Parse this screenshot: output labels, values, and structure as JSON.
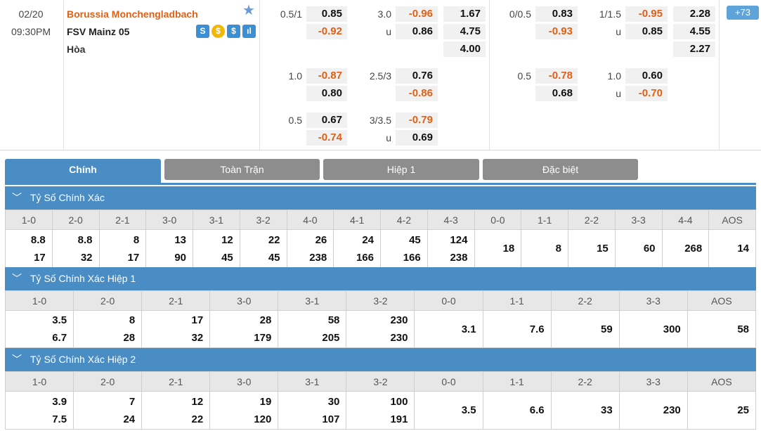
{
  "match": {
    "date": "02/20",
    "time": "09:30PM",
    "home": "Borussia Monchengladbach",
    "away": "FSV Mainz 05",
    "draw": "Hòa",
    "more_count": "+73",
    "badges": [
      "S",
      "$",
      "$",
      "ıl"
    ],
    "ft": {
      "hdp": [
        {
          "line": "0.5/1",
          "home": "0.85",
          "away": "-0.92"
        },
        {
          "line": "1.0",
          "home": "-0.87",
          "away": "0.80"
        },
        {
          "line": "0.5",
          "home": "0.67",
          "away": "-0.74"
        }
      ],
      "ou": [
        {
          "line": "3.0",
          "over": "-0.96",
          "under_lbl": "u",
          "under": "0.86"
        },
        {
          "line": "2.5/3",
          "over": "0.76",
          "under_lbl": "",
          "under": "-0.86"
        },
        {
          "line": "3/3.5",
          "over": "-0.79",
          "under_lbl": "u",
          "under": "0.69"
        }
      ],
      "x12": [
        "1.67",
        "4.75",
        "4.00"
      ]
    },
    "h1": {
      "hdp": [
        {
          "line": "0/0.5",
          "home": "0.83",
          "away": "-0.93"
        },
        {
          "line": "0.5",
          "home": "-0.78",
          "away": "0.68"
        }
      ],
      "ou": [
        {
          "line": "1/1.5",
          "over": "-0.95",
          "under_lbl": "u",
          "under": "0.85"
        },
        {
          "line": "1.0",
          "over": "0.60",
          "under_lbl": "u",
          "under": "-0.70"
        }
      ],
      "x12": [
        "2.28",
        "4.55",
        "2.27"
      ]
    }
  },
  "tabs": [
    "Chính",
    "Toàn Trận",
    "Hiệp 1",
    "Đặc biệt"
  ],
  "sections": [
    {
      "title": "Tỷ Số Chính Xác",
      "headers": [
        "1-0",
        "2-0",
        "2-1",
        "3-0",
        "3-1",
        "3-2",
        "4-0",
        "4-1",
        "4-2",
        "4-3",
        "0-0",
        "1-1",
        "2-2",
        "3-3",
        "4-4",
        "AOS"
      ],
      "top": [
        "8.8",
        "8.8",
        "8",
        "13",
        "12",
        "22",
        "26",
        "24",
        "45",
        "124",
        "18",
        "8",
        "15",
        "60",
        "268",
        "14"
      ],
      "bottom": [
        "17",
        "32",
        "17",
        "90",
        "45",
        "45",
        "238",
        "166",
        "166",
        "238",
        "",
        "",
        "",
        "",
        "",
        ""
      ]
    },
    {
      "title": "Tỷ Số Chính Xác Hiệp 1",
      "headers": [
        "1-0",
        "2-0",
        "2-1",
        "3-0",
        "3-1",
        "3-2",
        "0-0",
        "1-1",
        "2-2",
        "3-3",
        "AOS"
      ],
      "top": [
        "3.5",
        "8",
        "17",
        "28",
        "58",
        "230",
        "3.1",
        "7.6",
        "59",
        "300",
        "58"
      ],
      "bottom": [
        "6.7",
        "28",
        "32",
        "179",
        "205",
        "230",
        "",
        "",
        "",
        "",
        ""
      ]
    },
    {
      "title": "Tỷ Số Chính Xác Hiệp 2",
      "headers": [
        "1-0",
        "2-0",
        "2-1",
        "3-0",
        "3-1",
        "3-2",
        "0-0",
        "1-1",
        "2-2",
        "3-3",
        "AOS"
      ],
      "top": [
        "3.9",
        "7",
        "12",
        "19",
        "30",
        "100",
        "3.5",
        "6.6",
        "33",
        "230",
        "25"
      ],
      "bottom": [
        "7.5",
        "24",
        "22",
        "120",
        "107",
        "191",
        "",
        "",
        "",
        "",
        ""
      ]
    }
  ]
}
